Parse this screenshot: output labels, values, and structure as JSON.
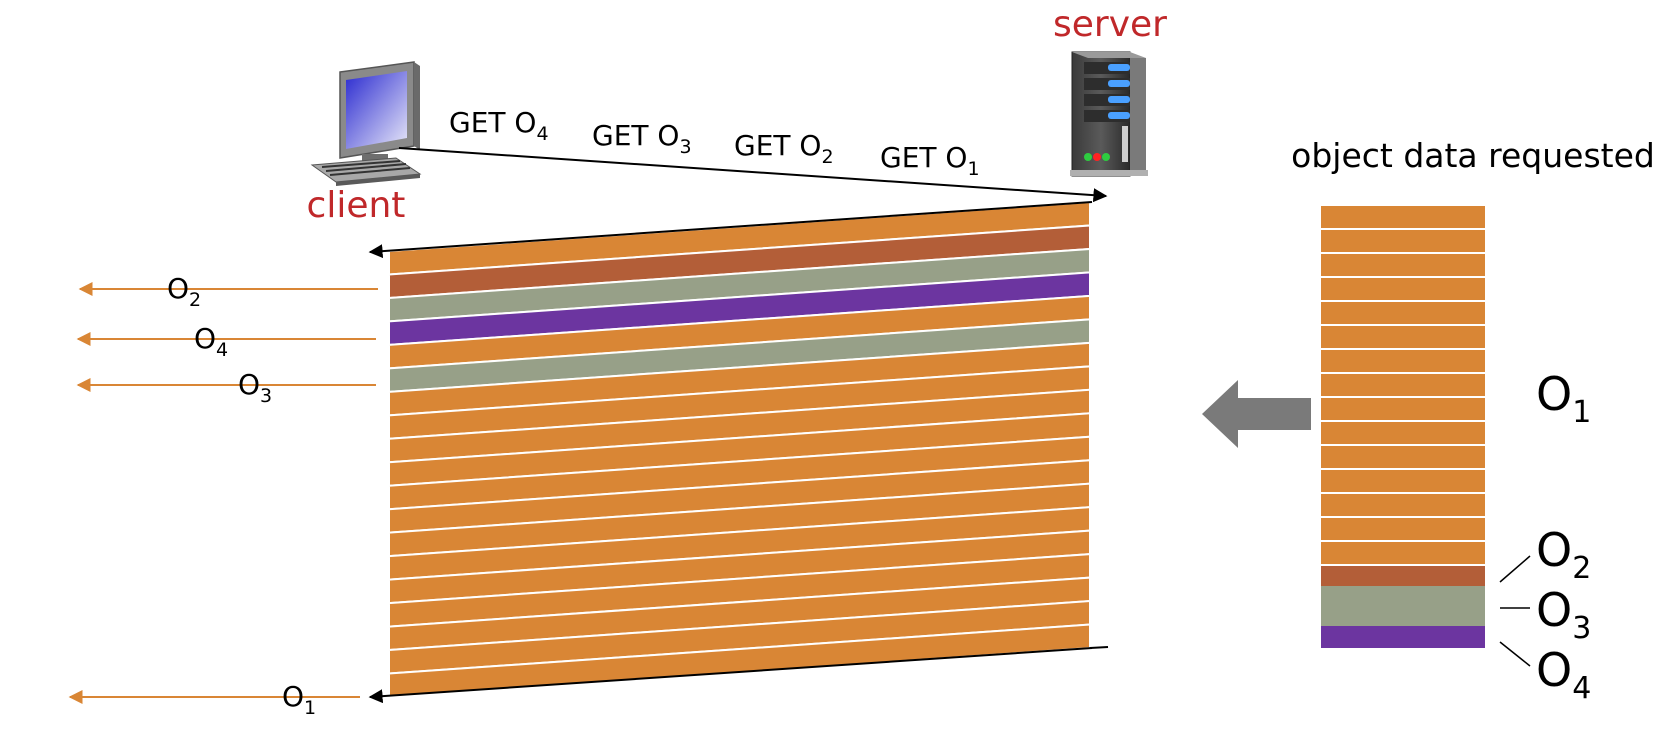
{
  "nodes": {
    "server_label": "server",
    "client_label": "client",
    "object_panel_title": "object data requested"
  },
  "requests": [
    {
      "prefix": "GET O",
      "sub": "4"
    },
    {
      "prefix": "GET O",
      "sub": "3"
    },
    {
      "prefix": "GET O",
      "sub": "2"
    },
    {
      "prefix": "GET O",
      "sub": "1"
    }
  ],
  "deliveries": [
    {
      "base": "O",
      "sub": "2"
    },
    {
      "base": "O",
      "sub": "4"
    },
    {
      "base": "O",
      "sub": "3"
    },
    {
      "base": "O",
      "sub": "1"
    }
  ],
  "objects": [
    {
      "base": "O",
      "sub": "1",
      "frames": 15
    },
    {
      "base": "O",
      "sub": "2",
      "frames": 1
    },
    {
      "base": "O",
      "sub": "3",
      "frames": 2
    },
    {
      "base": "O",
      "sub": "4",
      "frames": 1
    }
  ],
  "transmission_order": [
    "O1",
    "O2",
    "O3",
    "O4",
    "O1",
    "O3",
    "O1",
    "O1",
    "O1",
    "O1",
    "O1",
    "O1",
    "O1",
    "O1",
    "O1",
    "O1",
    "O1",
    "O1",
    "O1"
  ],
  "colors": {
    "O1": "#d98635",
    "O2": "#b35e38",
    "O3": "#97a088",
    "O4": "#6c35a0",
    "delivery_arrow": "#d98635",
    "label_red": "#c0282a",
    "big_arrow": "#7a7a7a",
    "separator": "#ffffff"
  }
}
